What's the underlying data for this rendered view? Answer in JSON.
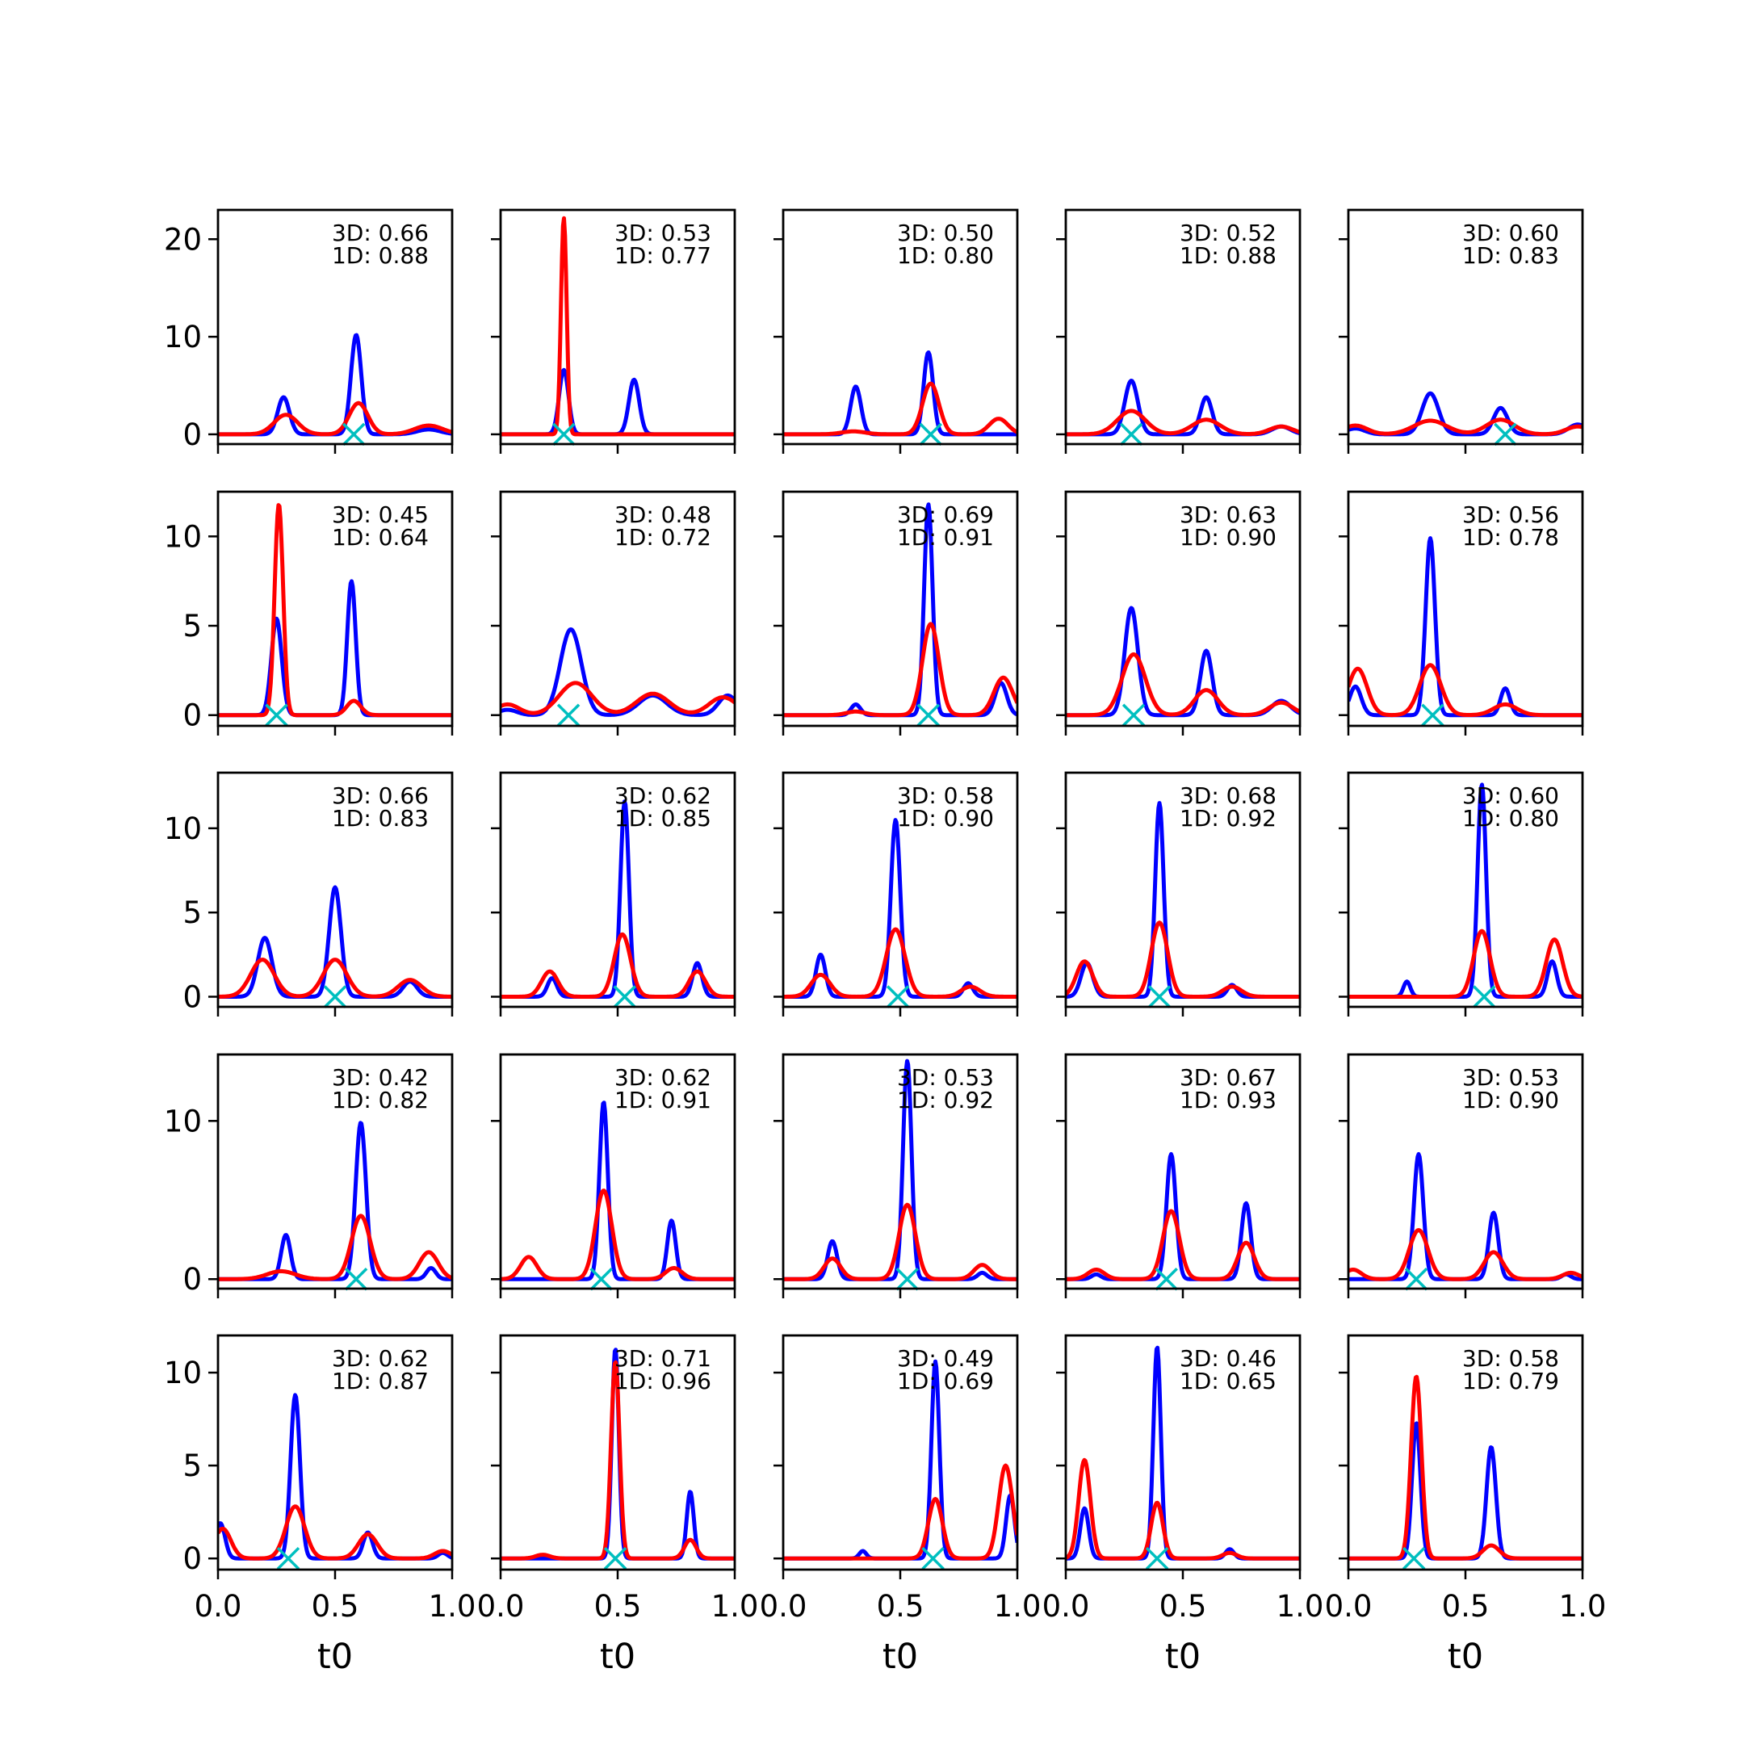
{
  "chart_data": {
    "type": "line",
    "layout": "5x5 grid of small multiples, shared x axis, rows share y axis",
    "xlabel": "t0",
    "xlim": [
      0,
      1
    ],
    "xticks": [
      "0.0",
      "0.5",
      "1.0"
    ],
    "marker_style": "x",
    "colors": {
      "blue_series": "#0000ff",
      "red_series": "#ff0000",
      "marker": "#00bfbf"
    },
    "rows": [
      {
        "ylim": [
          -1,
          23
        ],
        "yticks": [
          0,
          10,
          20
        ]
      },
      {
        "ylim": [
          -0.6,
          12.5
        ],
        "yticks": [
          0,
          5,
          10
        ]
      },
      {
        "ylim": [
          -0.6,
          13.3
        ],
        "yticks": [
          0,
          5,
          10
        ]
      },
      {
        "ylim": [
          -0.6,
          14.2
        ],
        "yticks": [
          0,
          10
        ]
      },
      {
        "ylim": [
          -0.6,
          12
        ],
        "yticks": [
          0,
          5,
          10
        ]
      }
    ],
    "panels": [
      {
        "annot": [
          "3D: 0.66",
          "1D: 0.88"
        ],
        "marker_x": 0.58,
        "blue": [
          [
            0.28,
            3.8,
            0.025
          ],
          [
            0.59,
            10.2,
            0.022
          ],
          [
            0.9,
            0.5,
            0.05
          ]
        ],
        "red": [
          [
            0.29,
            2.0,
            0.05
          ],
          [
            0.6,
            3.2,
            0.04
          ],
          [
            0.9,
            0.9,
            0.06
          ]
        ]
      },
      {
        "annot": [
          "3D: 0.53",
          "1D: 0.77"
        ],
        "marker_x": 0.27,
        "blue": [
          [
            0.27,
            6.6,
            0.02
          ],
          [
            0.57,
            5.6,
            0.022
          ]
        ],
        "red": [
          [
            0.27,
            22.2,
            0.012
          ]
        ]
      },
      {
        "annot": [
          "3D: 0.50",
          "1D: 0.80"
        ],
        "marker_x": 0.63,
        "blue": [
          [
            0.31,
            4.9,
            0.022
          ],
          [
            0.62,
            8.4,
            0.02
          ]
        ],
        "red": [
          [
            0.3,
            0.3,
            0.05
          ],
          [
            0.63,
            5.2,
            0.035
          ],
          [
            0.92,
            1.6,
            0.04
          ]
        ]
      },
      {
        "annot": [
          "3D: 0.52",
          "1D: 0.88"
        ],
        "marker_x": 0.28,
        "blue": [
          [
            0.28,
            5.5,
            0.028
          ],
          [
            0.6,
            3.8,
            0.025
          ],
          [
            0.92,
            0.8,
            0.04
          ]
        ],
        "red": [
          [
            0.28,
            2.4,
            0.06
          ],
          [
            0.6,
            1.5,
            0.06
          ],
          [
            0.92,
            0.8,
            0.05
          ]
        ]
      },
      {
        "annot": [
          "3D: 0.60",
          "1D: 0.83"
        ],
        "marker_x": 0.67,
        "blue": [
          [
            0.03,
            0.6,
            0.04
          ],
          [
            0.35,
            4.2,
            0.035
          ],
          [
            0.65,
            2.7,
            0.03
          ],
          [
            0.98,
            1.0,
            0.04
          ]
        ],
        "red": [
          [
            0.03,
            0.9,
            0.05
          ],
          [
            0.35,
            1.4,
            0.07
          ],
          [
            0.65,
            1.5,
            0.06
          ],
          [
            0.98,
            0.8,
            0.05
          ]
        ]
      },
      {
        "annot": [
          "3D: 0.45",
          "1D: 0.64"
        ],
        "marker_x": 0.25,
        "blue": [
          [
            0.25,
            5.4,
            0.022
          ],
          [
            0.57,
            7.5,
            0.018
          ]
        ],
        "red": [
          [
            0.26,
            11.8,
            0.018
          ],
          [
            0.58,
            0.8,
            0.03
          ]
        ]
      },
      {
        "annot": [
          "3D: 0.48",
          "1D: 0.72"
        ],
        "marker_x": 0.29,
        "blue": [
          [
            0.3,
            4.8,
            0.045
          ],
          [
            0.03,
            0.3,
            0.04
          ],
          [
            0.65,
            1.1,
            0.06
          ],
          [
            0.97,
            1.1,
            0.04
          ]
        ],
        "red": [
          [
            0.03,
            0.6,
            0.05
          ],
          [
            0.32,
            1.8,
            0.07
          ],
          [
            0.65,
            1.2,
            0.07
          ],
          [
            0.95,
            1.0,
            0.06
          ]
        ]
      },
      {
        "annot": [
          "3D: 0.69",
          "1D: 0.91"
        ],
        "marker_x": 0.62,
        "blue": [
          [
            0.31,
            0.6,
            0.02
          ],
          [
            0.62,
            11.8,
            0.018
          ],
          [
            0.93,
            1.8,
            0.025
          ]
        ],
        "red": [
          [
            0.31,
            0.2,
            0.04
          ],
          [
            0.63,
            5.1,
            0.035
          ],
          [
            0.94,
            2.1,
            0.04
          ]
        ]
      },
      {
        "annot": [
          "3D: 0.63",
          "1D: 0.90"
        ],
        "marker_x": 0.29,
        "blue": [
          [
            0.28,
            6.0,
            0.028
          ],
          [
            0.6,
            3.6,
            0.025
          ],
          [
            0.92,
            0.8,
            0.04
          ]
        ],
        "red": [
          [
            0.29,
            3.4,
            0.05
          ],
          [
            0.6,
            1.4,
            0.05
          ],
          [
            0.92,
            0.7,
            0.05
          ]
        ]
      },
      {
        "annot": [
          "3D: 0.56",
          "1D: 0.78"
        ],
        "marker_x": 0.36,
        "blue": [
          [
            0.03,
            1.6,
            0.025
          ],
          [
            0.35,
            9.9,
            0.02
          ],
          [
            0.67,
            1.5,
            0.02
          ]
        ],
        "red": [
          [
            0.04,
            2.6,
            0.04
          ],
          [
            0.35,
            2.8,
            0.045
          ],
          [
            0.67,
            0.6,
            0.05
          ]
        ]
      },
      {
        "annot": [
          "3D: 0.66",
          "1D: 0.83"
        ],
        "marker_x": 0.5,
        "blue": [
          [
            0.2,
            3.5,
            0.03
          ],
          [
            0.5,
            6.5,
            0.025
          ],
          [
            0.82,
            0.9,
            0.03
          ]
        ],
        "red": [
          [
            0.19,
            2.2,
            0.05
          ],
          [
            0.5,
            2.2,
            0.05
          ],
          [
            0.82,
            1.0,
            0.05
          ]
        ]
      },
      {
        "annot": [
          "3D: 0.62",
          "1D: 0.85"
        ],
        "marker_x": 0.53,
        "blue": [
          [
            0.22,
            1.1,
            0.02
          ],
          [
            0.53,
            11.6,
            0.018
          ],
          [
            0.84,
            2.0,
            0.02
          ]
        ],
        "red": [
          [
            0.21,
            1.5,
            0.035
          ],
          [
            0.52,
            3.7,
            0.035
          ],
          [
            0.84,
            1.5,
            0.035
          ]
        ]
      },
      {
        "annot": [
          "3D: 0.58",
          "1D: 0.90"
        ],
        "marker_x": 0.49,
        "blue": [
          [
            0.16,
            2.5,
            0.02
          ],
          [
            0.48,
            10.5,
            0.02
          ],
          [
            0.79,
            0.8,
            0.02
          ]
        ],
        "red": [
          [
            0.16,
            1.3,
            0.04
          ],
          [
            0.48,
            4.0,
            0.04
          ],
          [
            0.8,
            0.6,
            0.04
          ]
        ]
      },
      {
        "annot": [
          "3D: 0.68",
          "1D: 0.92"
        ],
        "marker_x": 0.4,
        "blue": [
          [
            0.09,
            2.0,
            0.025
          ],
          [
            0.4,
            11.5,
            0.018
          ],
          [
            0.71,
            0.7,
            0.02
          ]
        ],
        "red": [
          [
            0.08,
            2.1,
            0.035
          ],
          [
            0.4,
            4.4,
            0.035
          ],
          [
            0.71,
            0.6,
            0.04
          ]
        ]
      },
      {
        "annot": [
          "3D: 0.60",
          "1D: 0.80"
        ],
        "marker_x": 0.58,
        "blue": [
          [
            0.25,
            0.9,
            0.015
          ],
          [
            0.57,
            12.6,
            0.018
          ],
          [
            0.87,
            2.1,
            0.02
          ]
        ],
        "red": [
          [
            0.57,
            3.9,
            0.035
          ],
          [
            0.88,
            3.4,
            0.035
          ]
        ]
      },
      {
        "annot": [
          "3D: 0.42",
          "1D: 0.82"
        ],
        "marker_x": 0.59,
        "blue": [
          [
            0.29,
            2.8,
            0.02
          ],
          [
            0.61,
            9.9,
            0.022
          ],
          [
            0.91,
            0.7,
            0.02
          ]
        ],
        "red": [
          [
            0.27,
            0.5,
            0.06
          ],
          [
            0.61,
            4.0,
            0.04
          ],
          [
            0.9,
            1.7,
            0.04
          ]
        ]
      },
      {
        "annot": [
          "3D: 0.62",
          "1D: 0.91"
        ],
        "marker_x": 0.43,
        "blue": [
          [
            0.44,
            11.2,
            0.018
          ],
          [
            0.73,
            3.7,
            0.018
          ]
        ],
        "red": [
          [
            0.12,
            1.4,
            0.035
          ],
          [
            0.44,
            5.6,
            0.035
          ],
          [
            0.74,
            0.7,
            0.035
          ]
        ]
      },
      {
        "annot": [
          "3D: 0.53",
          "1D: 0.92"
        ],
        "marker_x": 0.53,
        "blue": [
          [
            0.21,
            2.4,
            0.02
          ],
          [
            0.53,
            13.8,
            0.018
          ],
          [
            0.85,
            0.4,
            0.02
          ]
        ],
        "red": [
          [
            0.21,
            1.3,
            0.035
          ],
          [
            0.53,
            4.7,
            0.035
          ],
          [
            0.85,
            0.9,
            0.035
          ]
        ]
      },
      {
        "annot": [
          "3D: 0.67",
          "1D: 0.93"
        ],
        "marker_x": 0.43,
        "blue": [
          [
            0.13,
            0.3,
            0.02
          ],
          [
            0.45,
            7.9,
            0.02
          ],
          [
            0.77,
            4.8,
            0.02
          ]
        ],
        "red": [
          [
            0.13,
            0.6,
            0.035
          ],
          [
            0.45,
            4.3,
            0.035
          ],
          [
            0.77,
            2.3,
            0.035
          ]
        ]
      },
      {
        "annot": [
          "3D: 0.53",
          "1D: 0.90"
        ],
        "marker_x": 0.29,
        "blue": [
          [
            0.3,
            7.9,
            0.02
          ],
          [
            0.62,
            4.2,
            0.02
          ],
          [
            0.93,
            0.3,
            0.02
          ]
        ],
        "red": [
          [
            0.02,
            0.6,
            0.035
          ],
          [
            0.3,
            3.1,
            0.04
          ],
          [
            0.62,
            1.7,
            0.04
          ],
          [
            0.95,
            0.4,
            0.035
          ]
        ]
      },
      {
        "annot": [
          "3D: 0.62",
          "1D: 0.87"
        ],
        "marker_x": 0.3,
        "blue": [
          [
            0.01,
            1.9,
            0.02
          ],
          [
            0.33,
            8.8,
            0.02
          ],
          [
            0.64,
            1.4,
            0.02
          ],
          [
            0.96,
            0.3,
            0.02
          ]
        ],
        "red": [
          [
            0.02,
            1.6,
            0.035
          ],
          [
            0.33,
            2.8,
            0.04
          ],
          [
            0.64,
            1.3,
            0.04
          ],
          [
            0.96,
            0.4,
            0.035
          ]
        ]
      },
      {
        "annot": [
          "3D: 0.71",
          "1D: 0.96"
        ],
        "marker_x": 0.49,
        "blue": [
          [
            0.49,
            11.3,
            0.015
          ],
          [
            0.81,
            3.6,
            0.015
          ]
        ],
        "red": [
          [
            0.18,
            0.2,
            0.03
          ],
          [
            0.49,
            10.6,
            0.018
          ],
          [
            0.81,
            1.0,
            0.025
          ]
        ]
      },
      {
        "annot": [
          "3D: 0.49",
          "1D: 0.69"
        ],
        "marker_x": 0.64,
        "blue": [
          [
            0.34,
            0.4,
            0.015
          ],
          [
            0.65,
            10.6,
            0.017
          ],
          [
            0.97,
            3.4,
            0.018
          ]
        ],
        "red": [
          [
            0.65,
            3.2,
            0.03
          ],
          [
            0.95,
            5.0,
            0.03
          ]
        ]
      },
      {
        "annot": [
          "3D: 0.46",
          "1D: 0.65"
        ],
        "marker_x": 0.39,
        "blue": [
          [
            0.08,
            2.7,
            0.018
          ],
          [
            0.39,
            11.4,
            0.016
          ],
          [
            0.7,
            0.5,
            0.018
          ]
        ],
        "red": [
          [
            0.08,
            5.3,
            0.025
          ],
          [
            0.39,
            3.0,
            0.025
          ],
          [
            0.7,
            0.3,
            0.03
          ]
        ]
      },
      {
        "annot": [
          "3D: 0.58",
          "1D: 0.79"
        ],
        "marker_x": 0.28,
        "blue": [
          [
            0.29,
            7.3,
            0.018
          ],
          [
            0.61,
            6.0,
            0.02
          ]
        ],
        "red": [
          [
            0.29,
            9.8,
            0.022
          ],
          [
            0.61,
            0.7,
            0.035
          ]
        ]
      }
    ]
  }
}
